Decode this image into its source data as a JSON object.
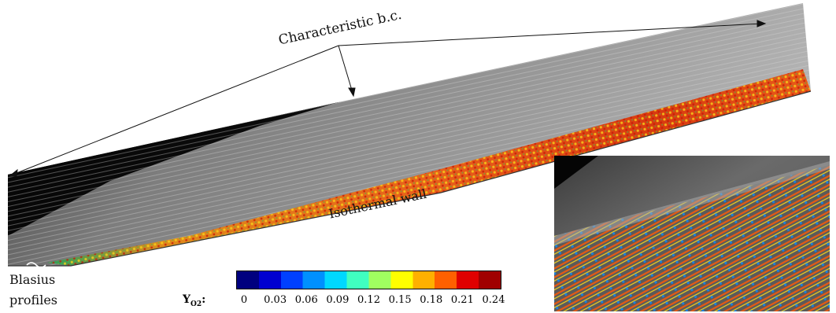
{
  "labels": {
    "characteristic_bc": "Characteristic b.c.",
    "isothermal_wall": "Isothermal wall",
    "blasius_line1": "Blasius",
    "blasius_line2": "profiles"
  },
  "colorbar": {
    "variable_main": "Y",
    "variable_sub": "O2",
    "suffix": ":",
    "ticks": [
      "0",
      "0.03",
      "0.06",
      "0.09",
      "0.12",
      "0.15",
      "0.18",
      "0.21",
      "0.24"
    ],
    "colors": [
      "#00007f",
      "#0000d0",
      "#0040ff",
      "#0090ff",
      "#00d8ff",
      "#40ffc0",
      "#a0ff60",
      "#ffff00",
      "#ffb000",
      "#ff6000",
      "#e00000",
      "#a00000"
    ]
  }
}
